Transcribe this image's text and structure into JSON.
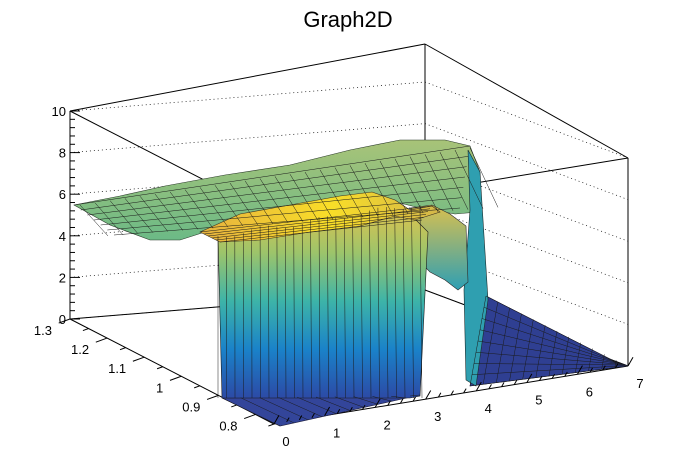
{
  "chart_data": {
    "type": "surface3d",
    "title": "Graph2D",
    "x_axis": {
      "range": [
        0,
        7
      ],
      "ticks": [
        "0",
        "1",
        "2",
        "3",
        "4",
        "5",
        "6",
        "7"
      ]
    },
    "y_axis": {
      "range": [
        0.75,
        1.3
      ],
      "ticks": [
        "0.8",
        "0.9",
        "1",
        "1.1",
        "1.2",
        "1.3"
      ]
    },
    "z_axis": {
      "range": [
        0,
        10
      ],
      "ticks": [
        "0",
        "2",
        "4",
        "6",
        "8",
        "10"
      ]
    },
    "grid": true,
    "colormap": [
      "#352a87",
      "#1f5fbf",
      "#1496c4",
      "#3eb5a6",
      "#8fc26e",
      "#d6bb3b",
      "#f9d91a",
      "#f9fb0e"
    ],
    "surface_regions": {
      "back_plateau": {
        "x": [
          0,
          4.2
        ],
        "y": [
          1.0,
          1.3
        ],
        "z_approx": [
          5,
          7.5
        ]
      },
      "front_block": {
        "x": [
          0.6,
          3.0
        ],
        "y": [
          0.75,
          1.0
        ],
        "z_approx": [
          4.5,
          6.2
        ]
      },
      "drop_x": [
        3.0,
        4.2
      ],
      "floor_z": 0
    }
  }
}
